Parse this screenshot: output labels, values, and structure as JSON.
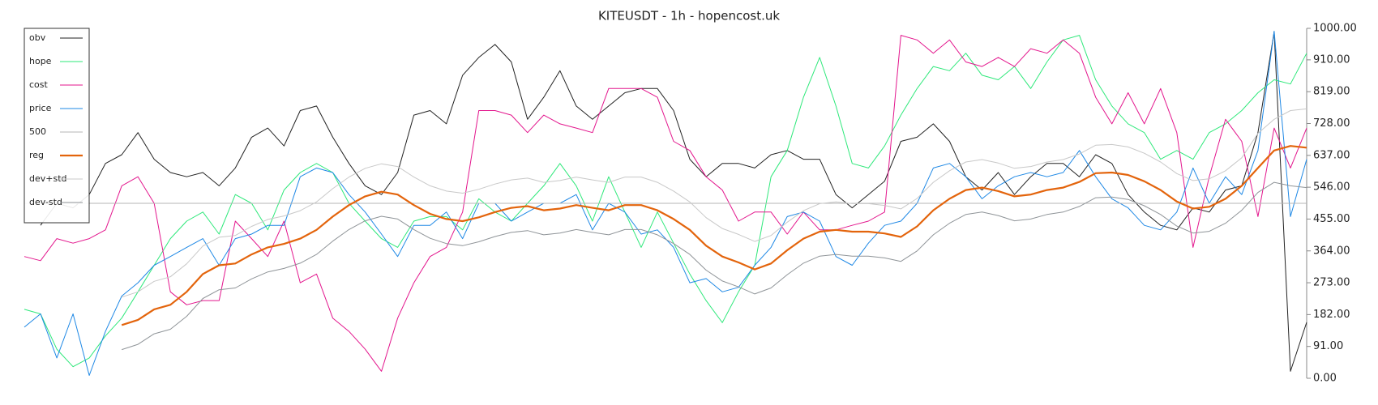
{
  "chart_data": {
    "type": "line",
    "title": "KITEUSDT - 1h - hopencost.uk",
    "ylim": [
      0,
      1000
    ],
    "yticks": [
      {
        "value": 0,
        "label": "0.00"
      },
      {
        "value": 91,
        "label": "91.00"
      },
      {
        "value": 182,
        "label": "182.00"
      },
      {
        "value": 273,
        "label": "273.00"
      },
      {
        "value": 364,
        "label": "364.00"
      },
      {
        "value": 455,
        "label": "455.00"
      },
      {
        "value": 546,
        "label": "546.00"
      },
      {
        "value": 637,
        "label": "637.00"
      },
      {
        "value": 728,
        "label": "728.00"
      },
      {
        "value": 819,
        "label": "819.00"
      },
      {
        "value": 910,
        "label": "910.00"
      },
      {
        "value": 1000,
        "label": "1000.00"
      }
    ],
    "legend": "upper left",
    "series": [
      {
        "name": "obv",
        "color": "#222222",
        "width": 1,
        "values": [
          null,
          437,
          500,
          487,
          525,
          614,
          639,
          702,
          626,
          588,
          576,
          588,
          550,
          601,
          689,
          715,
          664,
          765,
          778,
          689,
          614,
          550,
          525,
          588,
          752,
          765,
          727,
          866,
          917,
          954,
          904,
          740,
          803,
          879,
          778,
          740,
          778,
          816,
          828,
          828,
          765,
          626,
          576,
          614,
          614,
          601,
          639,
          651,
          626,
          626,
          525,
          487,
          525,
          563,
          677,
          689,
          727,
          677,
          576,
          538,
          588,
          525,
          576,
          614,
          614,
          576,
          639,
          614,
          525,
          475,
          437,
          424,
          487,
          475,
          538,
          550,
          702,
          990,
          20,
          160
        ]
      },
      {
        "name": "hope",
        "color": "#2ee87a",
        "width": 1,
        "values": [
          197,
          184,
          83,
          33,
          58,
          121,
          172,
          247,
          323,
          399,
          449,
          475,
          412,
          525,
          500,
          424,
          538,
          588,
          614,
          588,
          500,
          449,
          399,
          374,
          449,
          462,
          462,
          424,
          513,
          475,
          449,
          500,
          550,
          614,
          550,
          449,
          576,
          475,
          374,
          475,
          386,
          298,
          222,
          159,
          247,
          323,
          576,
          651,
          803,
          917,
          778,
          614,
          601,
          664,
          752,
          828,
          891,
          879,
          929,
          866,
          853,
          891,
          828,
          904,
          967,
          980,
          853,
          778,
          727,
          702,
          626,
          651,
          626,
          702,
          727,
          765,
          816,
          853,
          841,
          929
        ]
      },
      {
        "name": "cost",
        "color": "#e3168d",
        "width": 1,
        "values": [
          348,
          336,
          399,
          386,
          399,
          424,
          550,
          576,
          500,
          247,
          210,
          222,
          222,
          449,
          399,
          348,
          449,
          273,
          298,
          172,
          134,
          83,
          20,
          172,
          273,
          348,
          374,
          475,
          765,
          765,
          752,
          702,
          752,
          727,
          715,
          702,
          828,
          828,
          828,
          803,
          677,
          651,
          576,
          538,
          449,
          475,
          475,
          412,
          475,
          424,
          424,
          437,
          449,
          475,
          980,
          967,
          929,
          967,
          904,
          891,
          917,
          891,
          942,
          929,
          967,
          929,
          803,
          727,
          816,
          727,
          828,
          702,
          374,
          576,
          740,
          677,
          462,
          715,
          601,
          715
        ]
      },
      {
        "name": "price",
        "color": "#1e88e5",
        "width": 1,
        "values": [
          146,
          184,
          58,
          184,
          8,
          134,
          235,
          273,
          323,
          348,
          374,
          399,
          323,
          399,
          412,
          437,
          437,
          576,
          601,
          588,
          525,
          475,
          412,
          348,
          437,
          437,
          475,
          399,
          500,
          500,
          449,
          475,
          500,
          500,
          525,
          424,
          500,
          475,
          412,
          424,
          374,
          273,
          285,
          247,
          260,
          323,
          374,
          462,
          475,
          449,
          348,
          323,
          386,
          437,
          449,
          500,
          601,
          614,
          576,
          513,
          550,
          576,
          588,
          576,
          588,
          651,
          576,
          513,
          487,
          437,
          424,
          475,
          601,
          500,
          576,
          525,
          651,
          992,
          462,
          626
        ]
      },
      {
        "name": "500",
        "color": "#b5b5b5",
        "width": 1,
        "values": [
          500,
          500,
          500,
          500,
          500,
          500,
          500,
          500,
          500,
          500,
          500,
          500,
          500,
          500,
          500,
          500,
          500,
          500,
          500,
          500,
          500,
          500,
          500,
          500,
          500,
          500,
          500,
          500,
          500,
          500,
          500,
          500,
          500,
          500,
          500,
          500,
          500,
          500,
          500,
          500,
          500,
          500,
          500,
          500,
          500,
          500,
          500,
          500,
          500,
          500,
          500,
          500,
          500,
          500,
          500,
          500,
          500,
          500,
          500,
          500,
          500,
          500,
          500,
          500,
          500,
          500,
          500,
          500,
          500,
          500,
          500,
          500,
          500,
          500,
          500,
          500,
          500,
          500,
          500,
          500
        ]
      },
      {
        "name": "reg",
        "color": "#e3640c",
        "width": 2.2,
        "values": [
          null,
          null,
          null,
          null,
          null,
          null,
          152,
          167,
          197,
          210,
          247,
          298,
          323,
          328,
          354,
          374,
          384,
          399,
          424,
          462,
          495,
          520,
          533,
          525,
          495,
          470,
          455,
          449,
          460,
          475,
          487,
          492,
          480,
          485,
          495,
          487,
          480,
          495,
          495,
          480,
          455,
          424,
          379,
          348,
          331,
          311,
          328,
          366,
          399,
          419,
          424,
          419,
          419,
          414,
          404,
          434,
          480,
          513,
          538,
          545,
          535,
          520,
          525,
          538,
          545,
          561,
          586,
          588,
          581,
          563,
          538,
          505,
          485,
          490,
          513,
          550,
          601,
          651,
          664,
          659
        ]
      },
      {
        "name": "dev+std",
        "color": "#c8c8c8",
        "width": 1,
        "values": [
          null,
          null,
          null,
          null,
          null,
          null,
          232,
          247,
          277,
          290,
          327,
          378,
          403,
          408,
          434,
          454,
          464,
          479,
          504,
          542,
          575,
          600,
          613,
          605,
          575,
          550,
          535,
          529,
          540,
          555,
          567,
          572,
          560,
          565,
          575,
          567,
          560,
          575,
          575,
          560,
          535,
          504,
          459,
          428,
          411,
          391,
          408,
          446,
          479,
          499,
          504,
          499,
          499,
          494,
          484,
          514,
          560,
          593,
          618,
          625,
          615,
          600,
          605,
          618,
          625,
          641,
          666,
          668,
          661,
          643,
          618,
          585,
          565,
          570,
          593,
          630,
          700,
          740,
          765,
          770
        ]
      },
      {
        "name": "dev-std",
        "color": "#8f9498",
        "width": 1,
        "values": [
          null,
          null,
          null,
          null,
          null,
          null,
          82,
          97,
          127,
          140,
          177,
          228,
          253,
          258,
          284,
          304,
          314,
          329,
          354,
          392,
          425,
          450,
          463,
          455,
          425,
          400,
          385,
          379,
          390,
          405,
          417,
          422,
          410,
          415,
          425,
          417,
          410,
          425,
          425,
          410,
          385,
          354,
          309,
          278,
          261,
          241,
          258,
          296,
          329,
          349,
          354,
          349,
          349,
          344,
          334,
          364,
          410,
          443,
          468,
          475,
          465,
          450,
          455,
          468,
          475,
          491,
          516,
          518,
          511,
          493,
          468,
          435,
          415,
          420,
          443,
          480,
          531,
          560,
          550,
          545
        ]
      }
    ]
  }
}
